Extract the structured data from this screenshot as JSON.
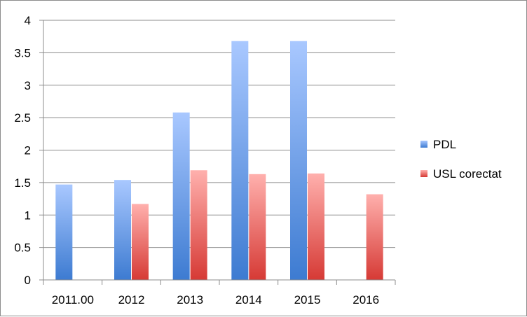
{
  "chart_data": {
    "type": "bar",
    "categories": [
      "2011.00",
      "2012",
      "2013",
      "2014",
      "2015",
      "2016"
    ],
    "series": [
      {
        "name": "PDL",
        "values": [
          1.47,
          1.54,
          2.58,
          3.68,
          3.68,
          null
        ]
      },
      {
        "name": "USL corectat",
        "values": [
          null,
          1.17,
          1.69,
          1.63,
          1.64,
          1.32
        ]
      }
    ],
    "ylim": [
      0,
      4
    ],
    "yticks": [
      "0",
      "0.5",
      "1",
      "1.5",
      "2",
      "2.5",
      "3",
      "3.5",
      "4"
    ],
    "grid": true,
    "legend_position": "right"
  },
  "colors": {
    "PDL_top": "#a9c8ff",
    "PDL_bottom": "#3d7bd1",
    "USL_top": "#ffb0ad",
    "USL_bottom": "#d63a35",
    "gridline": "#8c8c8c"
  }
}
